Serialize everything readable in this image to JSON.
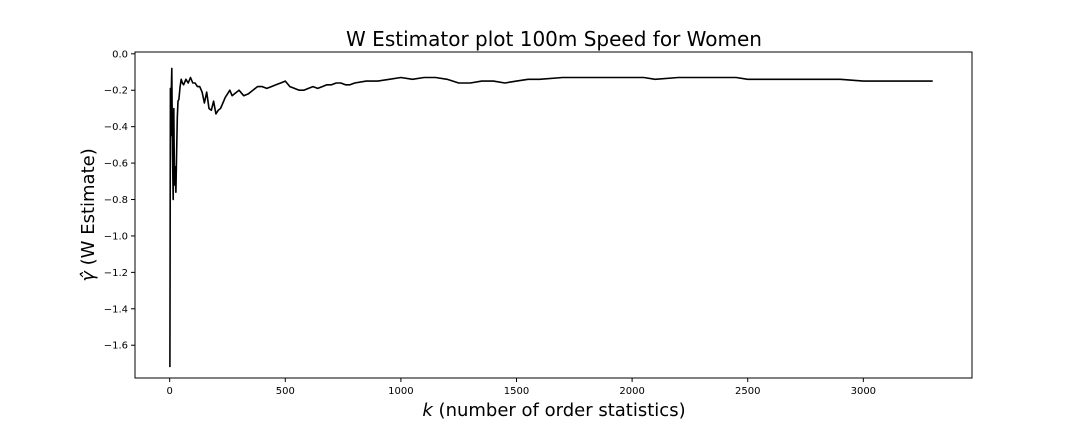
{
  "chart_data": {
    "type": "line",
    "title": "W Estimator plot 100m Speed for Women",
    "xlabel_var": "k",
    "xlabel_text": " (number of order statistics)",
    "ylabel_var": "γ̂",
    "ylabel_text": " (W Estimate)",
    "xlim": [
      -150,
      3470
    ],
    "ylim": [
      -1.78,
      0.01
    ],
    "xticks": [
      0,
      500,
      1000,
      1500,
      2000,
      2500,
      3000
    ],
    "xtick_labels": [
      "0",
      "500",
      "1000",
      "1500",
      "2000",
      "2500",
      "3000"
    ],
    "yticks": [
      0.0,
      -0.2,
      -0.4,
      -0.6,
      -0.8,
      -1.0,
      -1.2,
      -1.4,
      -1.6
    ],
    "ytick_labels": [
      "0.0",
      "−0.2",
      "−0.4",
      "−0.6",
      "−0.8",
      "−1.0",
      "−1.2",
      "−1.4",
      "−1.6"
    ],
    "grid": false,
    "series": [
      {
        "color": "#000000",
        "x": [
          1,
          3,
          5,
          7,
          9,
          12,
          15,
          18,
          21,
          24,
          27,
          30,
          33,
          36,
          40,
          45,
          50,
          55,
          60,
          70,
          80,
          90,
          100,
          110,
          120,
          130,
          140,
          150,
          160,
          170,
          180,
          190,
          200,
          210,
          220,
          230,
          240,
          250,
          260,
          270,
          280,
          300,
          320,
          340,
          360,
          380,
          400,
          420,
          440,
          460,
          480,
          500,
          520,
          540,
          560,
          580,
          600,
          620,
          640,
          660,
          680,
          700,
          720,
          740,
          760,
          780,
          800,
          850,
          900,
          950,
          1000,
          1050,
          1100,
          1150,
          1200,
          1250,
          1300,
          1350,
          1400,
          1450,
          1500,
          1550,
          1600,
          1700,
          1800,
          1900,
          2000,
          2050,
          2100,
          2200,
          2300,
          2400,
          2450,
          2500,
          2600,
          2700,
          2800,
          2900,
          3000,
          3100,
          3200,
          3300
        ],
        "y": [
          -1.72,
          -0.19,
          -0.45,
          -0.2,
          -0.08,
          -0.55,
          -0.8,
          -0.3,
          -0.72,
          -0.62,
          -0.76,
          -0.55,
          -0.35,
          -0.26,
          -0.25,
          -0.18,
          -0.14,
          -0.16,
          -0.17,
          -0.14,
          -0.16,
          -0.13,
          -0.16,
          -0.16,
          -0.18,
          -0.18,
          -0.21,
          -0.27,
          -0.21,
          -0.3,
          -0.31,
          -0.26,
          -0.33,
          -0.31,
          -0.3,
          -0.27,
          -0.24,
          -0.22,
          -0.2,
          -0.23,
          -0.22,
          -0.2,
          -0.23,
          -0.22,
          -0.2,
          -0.18,
          -0.18,
          -0.19,
          -0.18,
          -0.17,
          -0.16,
          -0.15,
          -0.18,
          -0.19,
          -0.2,
          -0.2,
          -0.19,
          -0.18,
          -0.19,
          -0.18,
          -0.17,
          -0.17,
          -0.16,
          -0.16,
          -0.17,
          -0.17,
          -0.16,
          -0.15,
          -0.15,
          -0.14,
          -0.13,
          -0.14,
          -0.13,
          -0.13,
          -0.14,
          -0.16,
          -0.16,
          -0.15,
          -0.15,
          -0.16,
          -0.15,
          -0.14,
          -0.14,
          -0.13,
          -0.13,
          -0.13,
          -0.13,
          -0.13,
          -0.14,
          -0.13,
          -0.13,
          -0.13,
          -0.13,
          -0.14,
          -0.14,
          -0.14,
          -0.14,
          -0.14,
          -0.15,
          -0.15,
          -0.15,
          -0.15
        ]
      }
    ]
  }
}
